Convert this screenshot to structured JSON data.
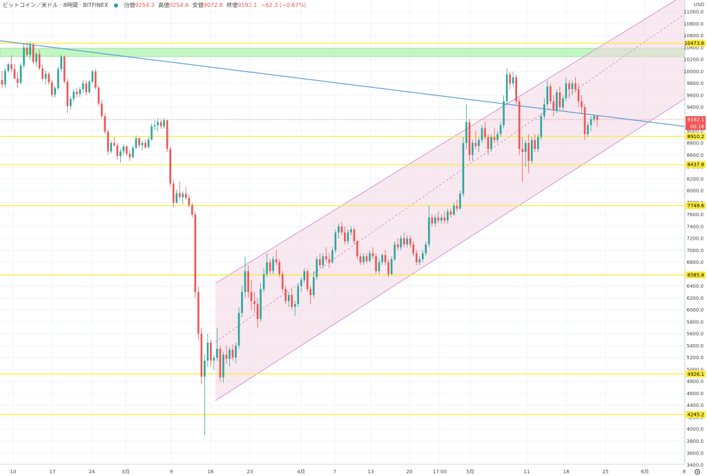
{
  "header": {
    "symbol": "ビットコイン／米ドル · 8時間 · BITFINEX",
    "open_label": "始値",
    "open": "9254.3",
    "high_label": "高値",
    "high": "9254.6",
    "low_label": "安値",
    "low": "9072.8",
    "close_label": "終値",
    "close": "9192.1",
    "change": "−62.3 (−0.67%)"
  },
  "axis": {
    "currency": "USD",
    "settings_icon": "gear-icon"
  },
  "chart_data": {
    "type": "candlestick",
    "title": "ビットコイン／米ドル · 8時間 · BITFINEX",
    "ylim": [
      3300,
      11100
    ],
    "grid": true,
    "y_ticks": [
      "3400.0",
      "3600.0",
      "3800.0",
      "4000.0",
      "4200.0",
      "4400.0",
      "4600.0",
      "4800.0",
      "5000.0",
      "5200.0",
      "5400.0",
      "5600.0",
      "5800.0",
      "6000.0",
      "6200.0",
      "6400.0",
      "6600.0",
      "6800.0",
      "7000.0",
      "7200.0",
      "7400.0",
      "7600.0",
      "7800.0",
      "8000.0",
      "8200.0",
      "8400.0",
      "8600.0",
      "8800.0",
      "9000.0",
      "9200.0",
      "9400.0",
      "9600.0",
      "9800.0",
      "10000.0",
      "10200.0",
      "10400.0",
      "10600.0",
      "10800.0",
      "11000.0"
    ],
    "x_ticks": [
      "10",
      "17",
      "24",
      "3月",
      "9",
      "16",
      "23",
      "4月",
      "7",
      "13",
      "20",
      "17:00",
      "5月",
      "11",
      "18",
      "25",
      "6月",
      "8"
    ],
    "horizontal_levels": [
      "10473.6",
      "8910.2",
      "8437.8",
      "7749.6",
      "6585.8",
      "4926.1",
      "4245.2"
    ],
    "last_price": "9192.1",
    "countdown": "00:16",
    "colors": {
      "up": "#26a69a",
      "down": "#ef5350",
      "level": "#ffeb3b",
      "channel": "#ce93d8",
      "trendline": "#5b9bd5",
      "zone": "#90ee90"
    },
    "candles": [
      {
        "o": 9860,
        "h": 10010,
        "l": 9720,
        "c": 9780
      },
      {
        "o": 9780,
        "h": 10050,
        "l": 9730,
        "c": 10010
      },
      {
        "o": 10010,
        "h": 10150,
        "l": 9980,
        "c": 10120
      },
      {
        "o": 10120,
        "h": 10270,
        "l": 9980,
        "c": 10040
      },
      {
        "o": 10040,
        "h": 10130,
        "l": 9870,
        "c": 9880
      },
      {
        "o": 9880,
        "h": 9990,
        "l": 9720,
        "c": 9810
      },
      {
        "o": 9810,
        "h": 10140,
        "l": 9790,
        "c": 10100
      },
      {
        "o": 10100,
        "h": 10470,
        "l": 10060,
        "c": 10400
      },
      {
        "o": 10400,
        "h": 10480,
        "l": 10250,
        "c": 10280
      },
      {
        "o": 10280,
        "h": 10500,
        "l": 10200,
        "c": 10440
      },
      {
        "o": 10440,
        "h": 10480,
        "l": 10120,
        "c": 10160
      },
      {
        "o": 10160,
        "h": 10320,
        "l": 10080,
        "c": 10290
      },
      {
        "o": 10290,
        "h": 10360,
        "l": 10020,
        "c": 10050
      },
      {
        "o": 10050,
        "h": 10110,
        "l": 9840,
        "c": 9880
      },
      {
        "o": 9880,
        "h": 10020,
        "l": 9780,
        "c": 9960
      },
      {
        "o": 9960,
        "h": 9990,
        "l": 9780,
        "c": 9820
      },
      {
        "o": 9820,
        "h": 9860,
        "l": 9570,
        "c": 9610
      },
      {
        "o": 9610,
        "h": 9760,
        "l": 9560,
        "c": 9720
      },
      {
        "o": 9720,
        "h": 10080,
        "l": 9690,
        "c": 10040
      },
      {
        "o": 10040,
        "h": 10280,
        "l": 9990,
        "c": 10250
      },
      {
        "o": 10250,
        "h": 10270,
        "l": 9800,
        "c": 9830
      },
      {
        "o": 9830,
        "h": 9880,
        "l": 9300,
        "c": 9420
      },
      {
        "o": 9420,
        "h": 9580,
        "l": 9360,
        "c": 9540
      },
      {
        "o": 9540,
        "h": 9700,
        "l": 9490,
        "c": 9660
      },
      {
        "o": 9660,
        "h": 9720,
        "l": 9560,
        "c": 9620
      },
      {
        "o": 9620,
        "h": 9740,
        "l": 9570,
        "c": 9700
      },
      {
        "o": 9700,
        "h": 9850,
        "l": 9640,
        "c": 9800
      },
      {
        "o": 9800,
        "h": 9850,
        "l": 9600,
        "c": 9650
      },
      {
        "o": 9650,
        "h": 9860,
        "l": 9630,
        "c": 9830
      },
      {
        "o": 9830,
        "h": 10030,
        "l": 9800,
        "c": 10000
      },
      {
        "o": 10000,
        "h": 10040,
        "l": 9700,
        "c": 9730
      },
      {
        "o": 9730,
        "h": 9760,
        "l": 9420,
        "c": 9460
      },
      {
        "o": 9460,
        "h": 9520,
        "l": 9220,
        "c": 9250
      },
      {
        "o": 9250,
        "h": 9300,
        "l": 8950,
        "c": 8990
      },
      {
        "o": 8990,
        "h": 9030,
        "l": 8600,
        "c": 8660
      },
      {
        "o": 8660,
        "h": 8840,
        "l": 8620,
        "c": 8800
      },
      {
        "o": 8800,
        "h": 8900,
        "l": 8740,
        "c": 8760
      },
      {
        "o": 8760,
        "h": 8800,
        "l": 8520,
        "c": 8580
      },
      {
        "o": 8580,
        "h": 8700,
        "l": 8470,
        "c": 8660
      },
      {
        "o": 8660,
        "h": 8780,
        "l": 8600,
        "c": 8740
      },
      {
        "o": 8740,
        "h": 8760,
        "l": 8580,
        "c": 8620
      },
      {
        "o": 8620,
        "h": 8680,
        "l": 8500,
        "c": 8560
      },
      {
        "o": 8560,
        "h": 8760,
        "l": 8540,
        "c": 8720
      },
      {
        "o": 8720,
        "h": 8930,
        "l": 8690,
        "c": 8880
      },
      {
        "o": 8880,
        "h": 8900,
        "l": 8720,
        "c": 8760
      },
      {
        "o": 8760,
        "h": 8840,
        "l": 8680,
        "c": 8800
      },
      {
        "o": 8800,
        "h": 8860,
        "l": 8700,
        "c": 8730
      },
      {
        "o": 8730,
        "h": 8900,
        "l": 8700,
        "c": 8860
      },
      {
        "o": 8860,
        "h": 9130,
        "l": 8840,
        "c": 9080
      },
      {
        "o": 9080,
        "h": 9180,
        "l": 9020,
        "c": 9100
      },
      {
        "o": 9100,
        "h": 9210,
        "l": 9000,
        "c": 9150
      },
      {
        "o": 9150,
        "h": 9190,
        "l": 9040,
        "c": 9080
      },
      {
        "o": 9080,
        "h": 9220,
        "l": 9040,
        "c": 9180
      },
      {
        "o": 9180,
        "h": 9190,
        "l": 8650,
        "c": 8700
      },
      {
        "o": 8700,
        "h": 8740,
        "l": 8060,
        "c": 8120
      },
      {
        "o": 8120,
        "h": 8180,
        "l": 7720,
        "c": 7800
      },
      {
        "o": 7800,
        "h": 8020,
        "l": 7780,
        "c": 7960
      },
      {
        "o": 7960,
        "h": 8150,
        "l": 7850,
        "c": 7890
      },
      {
        "o": 7890,
        "h": 7990,
        "l": 7780,
        "c": 7950
      },
      {
        "o": 7950,
        "h": 8060,
        "l": 7850,
        "c": 7880
      },
      {
        "o": 7880,
        "h": 7940,
        "l": 7720,
        "c": 7760
      },
      {
        "o": 7760,
        "h": 7790,
        "l": 7550,
        "c": 7600
      },
      {
        "o": 7600,
        "h": 7650,
        "l": 6200,
        "c": 6300
      },
      {
        "o": 6300,
        "h": 6400,
        "l": 5500,
        "c": 5600
      },
      {
        "o": 5600,
        "h": 5700,
        "l": 4750,
        "c": 4880
      },
      {
        "o": 4880,
        "h": 5250,
        "l": 3900,
        "c": 5150
      },
      {
        "o": 5150,
        "h": 5600,
        "l": 5050,
        "c": 5450
      },
      {
        "o": 5450,
        "h": 5500,
        "l": 5050,
        "c": 5150
      },
      {
        "o": 5150,
        "h": 5250,
        "l": 5000,
        "c": 5200
      },
      {
        "o": 5200,
        "h": 5700,
        "l": 5150,
        "c": 5350
      },
      {
        "o": 5350,
        "h": 5400,
        "l": 4800,
        "c": 4870
      },
      {
        "o": 4870,
        "h": 5300,
        "l": 4780,
        "c": 5250
      },
      {
        "o": 5250,
        "h": 5400,
        "l": 5100,
        "c": 5180
      },
      {
        "o": 5180,
        "h": 5380,
        "l": 5050,
        "c": 5330
      },
      {
        "o": 5330,
        "h": 5420,
        "l": 5150,
        "c": 5200
      },
      {
        "o": 5200,
        "h": 5450,
        "l": 5100,
        "c": 5400
      },
      {
        "o": 5400,
        "h": 6050,
        "l": 5350,
        "c": 5950
      },
      {
        "o": 5950,
        "h": 6400,
        "l": 5880,
        "c": 6300
      },
      {
        "o": 6300,
        "h": 6900,
        "l": 6200,
        "c": 6650
      },
      {
        "o": 6650,
        "h": 6750,
        "l": 6200,
        "c": 6300
      },
      {
        "o": 6300,
        "h": 6500,
        "l": 6000,
        "c": 6150
      },
      {
        "o": 6150,
        "h": 6300,
        "l": 5950,
        "c": 6100
      },
      {
        "o": 6100,
        "h": 6200,
        "l": 5700,
        "c": 5850
      },
      {
        "o": 5850,
        "h": 6450,
        "l": 5800,
        "c": 6350
      },
      {
        "o": 6350,
        "h": 6700,
        "l": 6300,
        "c": 6600
      },
      {
        "o": 6600,
        "h": 6950,
        "l": 6550,
        "c": 6800
      },
      {
        "o": 6800,
        "h": 6850,
        "l": 6600,
        "c": 6650
      },
      {
        "o": 6650,
        "h": 6900,
        "l": 6600,
        "c": 6850
      },
      {
        "o": 6850,
        "h": 7000,
        "l": 6750,
        "c": 6800
      },
      {
        "o": 6800,
        "h": 6850,
        "l": 6550,
        "c": 6600
      },
      {
        "o": 6600,
        "h": 6650,
        "l": 6300,
        "c": 6350
      },
      {
        "o": 6350,
        "h": 6400,
        "l": 6100,
        "c": 6150
      },
      {
        "o": 6150,
        "h": 6300,
        "l": 6050,
        "c": 6250
      },
      {
        "o": 6250,
        "h": 6350,
        "l": 6000,
        "c": 6050
      },
      {
        "o": 6050,
        "h": 6150,
        "l": 5900,
        "c": 6100
      },
      {
        "o": 6100,
        "h": 6450,
        "l": 6050,
        "c": 6400
      },
      {
        "o": 6400,
        "h": 6550,
        "l": 6300,
        "c": 6500
      },
      {
        "o": 6500,
        "h": 6700,
        "l": 6450,
        "c": 6650
      },
      {
        "o": 6650,
        "h": 6680,
        "l": 6300,
        "c": 6350
      },
      {
        "o": 6350,
        "h": 6400,
        "l": 6100,
        "c": 6250
      },
      {
        "o": 6250,
        "h": 6650,
        "l": 6200,
        "c": 6550
      },
      {
        "o": 6550,
        "h": 6900,
        "l": 6500,
        "c": 6850
      },
      {
        "o": 6850,
        "h": 6950,
        "l": 6700,
        "c": 6750
      },
      {
        "o": 6750,
        "h": 6950,
        "l": 6700,
        "c": 6900
      },
      {
        "o": 6900,
        "h": 7050,
        "l": 6800,
        "c": 6850
      },
      {
        "o": 6850,
        "h": 6950,
        "l": 6700,
        "c": 6800
      },
      {
        "o": 6800,
        "h": 7050,
        "l": 6780,
        "c": 7000
      },
      {
        "o": 7000,
        "h": 7350,
        "l": 6950,
        "c": 7300
      },
      {
        "o": 7300,
        "h": 7450,
        "l": 7200,
        "c": 7400
      },
      {
        "o": 7400,
        "h": 7480,
        "l": 7250,
        "c": 7300
      },
      {
        "o": 7300,
        "h": 7400,
        "l": 7100,
        "c": 7150
      },
      {
        "o": 7150,
        "h": 7350,
        "l": 7100,
        "c": 7300
      },
      {
        "o": 7300,
        "h": 7400,
        "l": 7250,
        "c": 7350
      },
      {
        "o": 7350,
        "h": 7380,
        "l": 7100,
        "c": 7150
      },
      {
        "o": 7150,
        "h": 7180,
        "l": 6850,
        "c": 6900
      },
      {
        "o": 6900,
        "h": 6950,
        "l": 6750,
        "c": 6800
      },
      {
        "o": 6800,
        "h": 6950,
        "l": 6750,
        "c": 6900
      },
      {
        "o": 6900,
        "h": 6950,
        "l": 6780,
        "c": 6820
      },
      {
        "o": 6820,
        "h": 7000,
        "l": 6800,
        "c": 6950
      },
      {
        "o": 6950,
        "h": 7050,
        "l": 6850,
        "c": 6900
      },
      {
        "o": 6900,
        "h": 6950,
        "l": 6600,
        "c": 6650
      },
      {
        "o": 6650,
        "h": 6850,
        "l": 6600,
        "c": 6800
      },
      {
        "o": 6800,
        "h": 6950,
        "l": 6750,
        "c": 6920
      },
      {
        "o": 6920,
        "h": 7000,
        "l": 6750,
        "c": 6800
      },
      {
        "o": 6800,
        "h": 6850,
        "l": 6550,
        "c": 6600
      },
      {
        "o": 6600,
        "h": 6900,
        "l": 6580,
        "c": 6850
      },
      {
        "o": 6850,
        "h": 7150,
        "l": 6820,
        "c": 7100
      },
      {
        "o": 7100,
        "h": 7200,
        "l": 7000,
        "c": 7050
      },
      {
        "o": 7050,
        "h": 7250,
        "l": 7000,
        "c": 7200
      },
      {
        "o": 7200,
        "h": 7300,
        "l": 7050,
        "c": 7100
      },
      {
        "o": 7100,
        "h": 7250,
        "l": 7050,
        "c": 7200
      },
      {
        "o": 7200,
        "h": 7250,
        "l": 7050,
        "c": 7100
      },
      {
        "o": 7100,
        "h": 7150,
        "l": 6900,
        "c": 6950
      },
      {
        "o": 6950,
        "h": 7000,
        "l": 6750,
        "c": 6800
      },
      {
        "o": 6800,
        "h": 6900,
        "l": 6750,
        "c": 6850
      },
      {
        "o": 6850,
        "h": 7000,
        "l": 6800,
        "c": 6950
      },
      {
        "o": 6950,
        "h": 7150,
        "l": 6900,
        "c": 7100
      },
      {
        "o": 7100,
        "h": 7750,
        "l": 7050,
        "c": 7550
      },
      {
        "o": 7550,
        "h": 7600,
        "l": 7400,
        "c": 7450
      },
      {
        "o": 7450,
        "h": 7600,
        "l": 7400,
        "c": 7550
      },
      {
        "o": 7550,
        "h": 7650,
        "l": 7450,
        "c": 7500
      },
      {
        "o": 7500,
        "h": 7600,
        "l": 7450,
        "c": 7550
      },
      {
        "o": 7550,
        "h": 7650,
        "l": 7450,
        "c": 7500
      },
      {
        "o": 7500,
        "h": 7700,
        "l": 7450,
        "c": 7650
      },
      {
        "o": 7650,
        "h": 7700,
        "l": 7550,
        "c": 7600
      },
      {
        "o": 7600,
        "h": 7800,
        "l": 7580,
        "c": 7750
      },
      {
        "o": 7750,
        "h": 7850,
        "l": 7650,
        "c": 7700
      },
      {
        "o": 7700,
        "h": 8000,
        "l": 7680,
        "c": 7950
      },
      {
        "o": 7950,
        "h": 8900,
        "l": 7900,
        "c": 8800
      },
      {
        "o": 8800,
        "h": 9450,
        "l": 8700,
        "c": 9150
      },
      {
        "o": 9150,
        "h": 9200,
        "l": 8500,
        "c": 8600
      },
      {
        "o": 8600,
        "h": 8850,
        "l": 8500,
        "c": 8800
      },
      {
        "o": 8800,
        "h": 9000,
        "l": 8700,
        "c": 8750
      },
      {
        "o": 8750,
        "h": 8900,
        "l": 8650,
        "c": 8850
      },
      {
        "o": 8850,
        "h": 9100,
        "l": 8800,
        "c": 9050
      },
      {
        "o": 9050,
        "h": 9150,
        "l": 8850,
        "c": 8900
      },
      {
        "o": 8900,
        "h": 8950,
        "l": 8600,
        "c": 8700
      },
      {
        "o": 8700,
        "h": 8950,
        "l": 8650,
        "c": 8900
      },
      {
        "o": 8900,
        "h": 9050,
        "l": 8800,
        "c": 8850
      },
      {
        "o": 8850,
        "h": 9000,
        "l": 8800,
        "c": 8950
      },
      {
        "o": 8950,
        "h": 9150,
        "l": 8900,
        "c": 9100
      },
      {
        "o": 9100,
        "h": 9600,
        "l": 9050,
        "c": 9500
      },
      {
        "o": 9500,
        "h": 10050,
        "l": 9450,
        "c": 9950
      },
      {
        "o": 9950,
        "h": 10000,
        "l": 9700,
        "c": 9800
      },
      {
        "o": 9800,
        "h": 10000,
        "l": 9750,
        "c": 9900
      },
      {
        "o": 9900,
        "h": 9950,
        "l": 9450,
        "c": 9500
      },
      {
        "o": 9500,
        "h": 9550,
        "l": 8600,
        "c": 8700
      },
      {
        "o": 8700,
        "h": 8900,
        "l": 8150,
        "c": 8650
      },
      {
        "o": 8650,
        "h": 8850,
        "l": 8400,
        "c": 8800
      },
      {
        "o": 8800,
        "h": 8950,
        "l": 8300,
        "c": 8500
      },
      {
        "o": 8500,
        "h": 8900,
        "l": 8450,
        "c": 8850
      },
      {
        "o": 8850,
        "h": 8950,
        "l": 8650,
        "c": 8700
      },
      {
        "o": 8700,
        "h": 8950,
        "l": 8650,
        "c": 8900
      },
      {
        "o": 8900,
        "h": 9300,
        "l": 8850,
        "c": 9250
      },
      {
        "o": 9250,
        "h": 9550,
        "l": 9200,
        "c": 9450
      },
      {
        "o": 9450,
        "h": 9850,
        "l": 9400,
        "c": 9750
      },
      {
        "o": 9750,
        "h": 9800,
        "l": 9450,
        "c": 9500
      },
      {
        "o": 9500,
        "h": 9600,
        "l": 9250,
        "c": 9350
      },
      {
        "o": 9350,
        "h": 9700,
        "l": 9300,
        "c": 9650
      },
      {
        "o": 9650,
        "h": 9750,
        "l": 9350,
        "c": 9400
      },
      {
        "o": 9400,
        "h": 9600,
        "l": 9350,
        "c": 9550
      },
      {
        "o": 9550,
        "h": 9900,
        "l": 9500,
        "c": 9800
      },
      {
        "o": 9800,
        "h": 9850,
        "l": 9550,
        "c": 9700
      },
      {
        "o": 9700,
        "h": 9850,
        "l": 9600,
        "c": 9800
      },
      {
        "o": 9800,
        "h": 9900,
        "l": 9650,
        "c": 9700
      },
      {
        "o": 9700,
        "h": 9800,
        "l": 9400,
        "c": 9500
      },
      {
        "o": 9500,
        "h": 9600,
        "l": 9300,
        "c": 9400
      },
      {
        "o": 9400,
        "h": 9450,
        "l": 8850,
        "c": 8950
      },
      {
        "o": 8950,
        "h": 9150,
        "l": 8900,
        "c": 9100
      },
      {
        "o": 9100,
        "h": 9250,
        "l": 9000,
        "c": 9200
      },
      {
        "o": 9200,
        "h": 9270,
        "l": 9150,
        "c": 9254
      },
      {
        "o": 9254,
        "h": 9255,
        "l": 9073,
        "c": 9192
      }
    ]
  }
}
